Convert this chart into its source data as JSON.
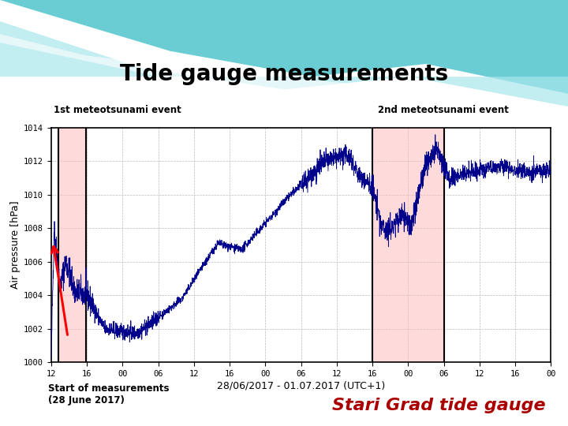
{
  "title": "Tide gauge measurements",
  "xlabel": "28/06/2017 - 01.07.2017 (UTC+1)",
  "ylabel": "Air pressure [hPa]",
  "ylim": [
    1000,
    1014
  ],
  "yticks": [
    1000,
    1002,
    1004,
    1006,
    1008,
    1010,
    1012,
    1014
  ],
  "xtick_labels": [
    "12",
    "16",
    "00",
    "06",
    "12",
    "16",
    "00",
    "06",
    "12",
    "16",
    "00",
    "06",
    "12",
    "16",
    "00"
  ],
  "label_1st": "1st meteotsunami event",
  "label_2nd": "2nd meteotsunami event",
  "label_start": "Start of measurements\n(28 June 2017)",
  "label_station": "Stari Grad tide gauge",
  "line_color": "#00008B",
  "highlight_color": "#FFB6B6",
  "highlight_alpha": 0.5,
  "background_color": "#FFFFFF",
  "title_fontsize": 20,
  "axis_fontsize": 9,
  "station_fontsize": 16,
  "station_color": "#AA0000",
  "event1_x_start": 13.2,
  "event1_x_end": 17.8,
  "event2_x_start": 66.0,
  "event2_x_end": 78.0,
  "xmin": 12.0,
  "xmax": 96.0
}
